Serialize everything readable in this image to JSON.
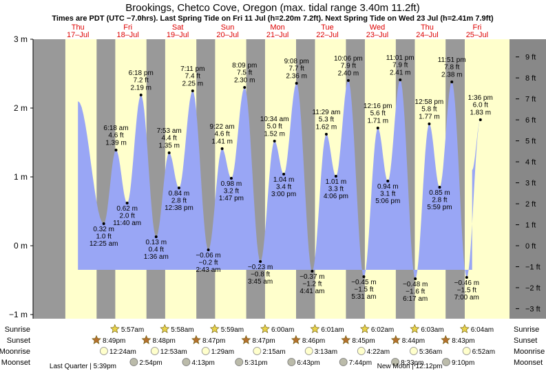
{
  "title": "Brookings, Chetco Cove, Oregon (max. tidal range 3.40m 11.2ft)",
  "subtitle": "Times are PDT (UTC −7.0hrs). Last Spring Tide on Fri 11 Jul (h=2.20m 7.2ft). Next Spring Tide on Wed 23 Jul (h=2.41m 7.9ft)",
  "colors": {
    "water": "#99a6f5",
    "day": "#ffffcc",
    "night": "#999999",
    "rightBar": "#888888",
    "dayLabel": "#dd0000"
  },
  "days": [
    {
      "dow": "Thu",
      "date": "17–Jul",
      "x": 0.0
    },
    {
      "dow": "Fri",
      "date": "18–Jul",
      "x": 1.0
    },
    {
      "dow": "Sat",
      "date": "19–Jul",
      "x": 2.0
    },
    {
      "dow": "Sun",
      "date": "20–Jul",
      "x": 3.0
    },
    {
      "dow": "Mon",
      "date": "21–Jul",
      "x": 4.0
    },
    {
      "dow": "Tue",
      "date": "22–Jul",
      "x": 5.0
    },
    {
      "dow": "Wed",
      "date": "23–Jul",
      "x": 6.0
    },
    {
      "dow": "Thu",
      "date": "24–Jul",
      "x": 7.0
    },
    {
      "dow": "Fri",
      "date": "25–Jul",
      "x": 8.0
    }
  ],
  "chart_data": {
    "type": "area",
    "xlabel": "",
    "ylabel": "",
    "x_unit": "days from 17 Jul 00:00 PDT",
    "xlim": [
      -0.4,
      9.15
    ],
    "ylim": [
      -1.05,
      3.05
    ],
    "y_left_ticks": [
      {
        "v": 3,
        "label": "3 m"
      },
      {
        "v": 2,
        "label": "2 m"
      },
      {
        "v": 1,
        "label": "1 m"
      },
      {
        "v": 0,
        "label": "0 m"
      },
      {
        "v": -1,
        "label": "−1 m"
      }
    ],
    "y_right_ticks": [
      {
        "v": 9,
        "label": "9 ft"
      },
      {
        "v": 8,
        "label": "8 ft"
      },
      {
        "v": 7,
        "label": "7 ft"
      },
      {
        "v": 6,
        "label": "6 ft"
      },
      {
        "v": 5,
        "label": "5 ft"
      },
      {
        "v": 4,
        "label": "4 ft"
      },
      {
        "v": 3,
        "label": "3 ft"
      },
      {
        "v": 2,
        "label": "2 ft"
      },
      {
        "v": 1,
        "label": "1 ft"
      },
      {
        "v": 0,
        "label": "0 ft"
      },
      {
        "v": -1,
        "label": "−1 ft"
      },
      {
        "v": -2,
        "label": "−2 ft"
      },
      {
        "v": -3,
        "label": "−3 ft"
      }
    ],
    "series_start": {
      "x": 0.5,
      "y": 2.1
    },
    "series_end": {
      "x": 8.4,
      "y": 1.1
    },
    "tides": [
      {
        "x": 1.017,
        "y": 0.32,
        "m": "0.32 m",
        "ft": "1.0 ft",
        "time": "12:25 am",
        "type": "low"
      },
      {
        "x": 1.263,
        "y": 1.39,
        "m": "1.39 m",
        "ft": "4.6 ft",
        "time": "6:18 am",
        "type": "high"
      },
      {
        "x": 1.486,
        "y": 0.62,
        "m": "0.62 m",
        "ft": "2.0 ft",
        "time": "11:40 am",
        "type": "low"
      },
      {
        "x": 1.763,
        "y": 2.19,
        "m": "2.19 m",
        "ft": "7.2 ft",
        "time": "6:18 pm",
        "type": "high"
      },
      {
        "x": 2.067,
        "y": 0.13,
        "m": "0.13 m",
        "ft": "0.4 ft",
        "time": "1:36 am",
        "type": "low"
      },
      {
        "x": 2.328,
        "y": 1.35,
        "m": "1.35 m",
        "ft": "4.4 ft",
        "time": "7:53 am",
        "type": "high"
      },
      {
        "x": 2.525,
        "y": 0.84,
        "m": "0.84 m",
        "ft": "2.8 ft",
        "time": "12:38 pm",
        "type": "low"
      },
      {
        "x": 2.799,
        "y": 2.25,
        "m": "2.25 m",
        "ft": "7.4 ft",
        "time": "7:11 pm",
        "type": "high"
      },
      {
        "x": 3.113,
        "y": -0.06,
        "m": "−0.06 m",
        "ft": "−0.2 ft",
        "time": "2:43 am",
        "type": "low"
      },
      {
        "x": 3.39,
        "y": 1.41,
        "m": "1.41 m",
        "ft": "4.6 ft",
        "time": "9:22 am",
        "type": "high"
      },
      {
        "x": 3.574,
        "y": 0.98,
        "m": "0.98 m",
        "ft": "3.2 ft",
        "time": "1:47 pm",
        "type": "low"
      },
      {
        "x": 3.84,
        "y": 2.3,
        "m": "2.30 m",
        "ft": "7.5 ft",
        "time": "8:09 pm",
        "type": "high"
      },
      {
        "x": 4.156,
        "y": -0.23,
        "m": "−0.23 m",
        "ft": "−0.8 ft",
        "time": "3:45 am",
        "type": "low"
      },
      {
        "x": 4.44,
        "y": 1.52,
        "m": "1.52 m",
        "ft": "5.0 ft",
        "time": "10:34 am",
        "type": "high"
      },
      {
        "x": 4.625,
        "y": 1.04,
        "m": "1.04 m",
        "ft": "3.4 ft",
        "time": "3:00 pm",
        "type": "low"
      },
      {
        "x": 4.881,
        "y": 2.36,
        "m": "2.36 m",
        "ft": "7.7 ft",
        "time": "9:08 pm",
        "type": "high"
      },
      {
        "x": 5.195,
        "y": -0.37,
        "m": "−0.37 m",
        "ft": "−1.2 ft",
        "time": "4:41 am",
        "type": "low"
      },
      {
        "x": 5.478,
        "y": 1.62,
        "m": "1.62 m",
        "ft": "5.3 ft",
        "time": "11:29 am",
        "type": "high"
      },
      {
        "x": 5.671,
        "y": 1.01,
        "m": "1.01 m",
        "ft": "3.3 ft",
        "time": "4:06 pm",
        "type": "low"
      },
      {
        "x": 5.919,
        "y": 2.4,
        "m": "2.40 m",
        "ft": "7.9 ft",
        "time": "10:06 pm",
        "type": "high"
      },
      {
        "x": 6.23,
        "y": -0.45,
        "m": "−0.45 m",
        "ft": "−1.5 ft",
        "time": "5:31 am",
        "type": "low"
      },
      {
        "x": 6.511,
        "y": 1.71,
        "m": "1.71 m",
        "ft": "5.6 ft",
        "time": "12:16 pm",
        "type": "high"
      },
      {
        "x": 6.711,
        "y": 0.94,
        "m": "0.94 m",
        "ft": "3.1 ft",
        "time": "5:06 pm",
        "type": "low"
      },
      {
        "x": 6.959,
        "y": 2.41,
        "m": "2.41 m",
        "ft": "7.9 ft",
        "time": "11:01 pm",
        "type": "high"
      },
      {
        "x": 7.262,
        "y": -0.48,
        "m": "−0.48 m",
        "ft": "−1.6 ft",
        "time": "6:17 am",
        "type": "low"
      },
      {
        "x": 7.541,
        "y": 1.77,
        "m": "1.77 m",
        "ft": "5.8 ft",
        "time": "12:58 pm",
        "type": "high"
      },
      {
        "x": 7.749,
        "y": 0.85,
        "m": "0.85 m",
        "ft": "2.8 ft",
        "time": "5:59 pm",
        "type": "low"
      },
      {
        "x": 7.994,
        "y": 2.38,
        "m": "2.38 m",
        "ft": "7.8 ft",
        "time": "11:51 pm",
        "type": "high"
      },
      {
        "x": 8.292,
        "y": -0.46,
        "m": "−0.46 m",
        "ft": "−1.5 ft",
        "time": "7:00 am",
        "type": "low"
      },
      {
        "x": 8.567,
        "y": 1.83,
        "m": "1.83 m",
        "ft": "6.0 ft",
        "time": "1:36 pm",
        "type": "high"
      }
    ],
    "nights": [
      [
        -0.4,
        0.247
      ],
      [
        0.874,
        1.248
      ],
      [
        1.873,
        2.248
      ],
      [
        2.873,
        3.249
      ],
      [
        3.873,
        4.25
      ],
      [
        4.872,
        5.251
      ],
      [
        5.871,
        6.251
      ],
      [
        6.871,
        7.252
      ],
      [
        7.869,
        8.253
      ]
    ]
  },
  "sun_moon": {
    "row_labels": [
      "Sunrise",
      "Sunset",
      "Moonrise",
      "Moonset"
    ],
    "sunrise": [
      {
        "x": 1.24,
        "t": "5:57am"
      },
      {
        "x": 2.24,
        "t": "5:58am"
      },
      {
        "x": 3.24,
        "t": "5:59am"
      },
      {
        "x": 4.25,
        "t": "6:00am"
      },
      {
        "x": 5.25,
        "t": "6:01am"
      },
      {
        "x": 6.25,
        "t": "6:02am"
      },
      {
        "x": 7.25,
        "t": "6:03am"
      },
      {
        "x": 8.25,
        "t": "6:04am"
      }
    ],
    "sunset": [
      {
        "x": 0.87,
        "t": "8:49pm"
      },
      {
        "x": 1.87,
        "t": "8:48pm"
      },
      {
        "x": 2.87,
        "t": "8:47pm"
      },
      {
        "x": 3.87,
        "t": "8:47pm"
      },
      {
        "x": 4.87,
        "t": "8:46pm"
      },
      {
        "x": 5.87,
        "t": "8:45pm"
      },
      {
        "x": 6.87,
        "t": "8:44pm"
      },
      {
        "x": 7.87,
        "t": "8:43pm"
      }
    ],
    "moonrise": [
      {
        "x": 1.02,
        "t": "12:24am"
      },
      {
        "x": 2.04,
        "t": "12:53am"
      },
      {
        "x": 3.06,
        "t": "1:29am"
      },
      {
        "x": 4.09,
        "t": "2:15am"
      },
      {
        "x": 5.13,
        "t": "3:13am"
      },
      {
        "x": 6.18,
        "t": "4:22am"
      },
      {
        "x": 7.23,
        "t": "5:36am"
      },
      {
        "x": 8.29,
        "t": "6:52am"
      }
    ],
    "moonset": [
      {
        "x": 1.62,
        "t": "2:54pm"
      },
      {
        "x": 2.67,
        "t": "4:13pm"
      },
      {
        "x": 3.73,
        "t": "5:31pm"
      },
      {
        "x": 4.78,
        "t": "6:43pm"
      },
      {
        "x": 5.82,
        "t": "7:44pm"
      },
      {
        "x": 6.86,
        "t": "8:33pm"
      },
      {
        "x": 7.88,
        "t": "9:10pm"
      }
    ],
    "phases": [
      {
        "x": 0.6,
        "t": "Last Quarter | 5:39pm"
      },
      {
        "x": 7.15,
        "t": "New Moon | 12:12pm"
      }
    ]
  }
}
